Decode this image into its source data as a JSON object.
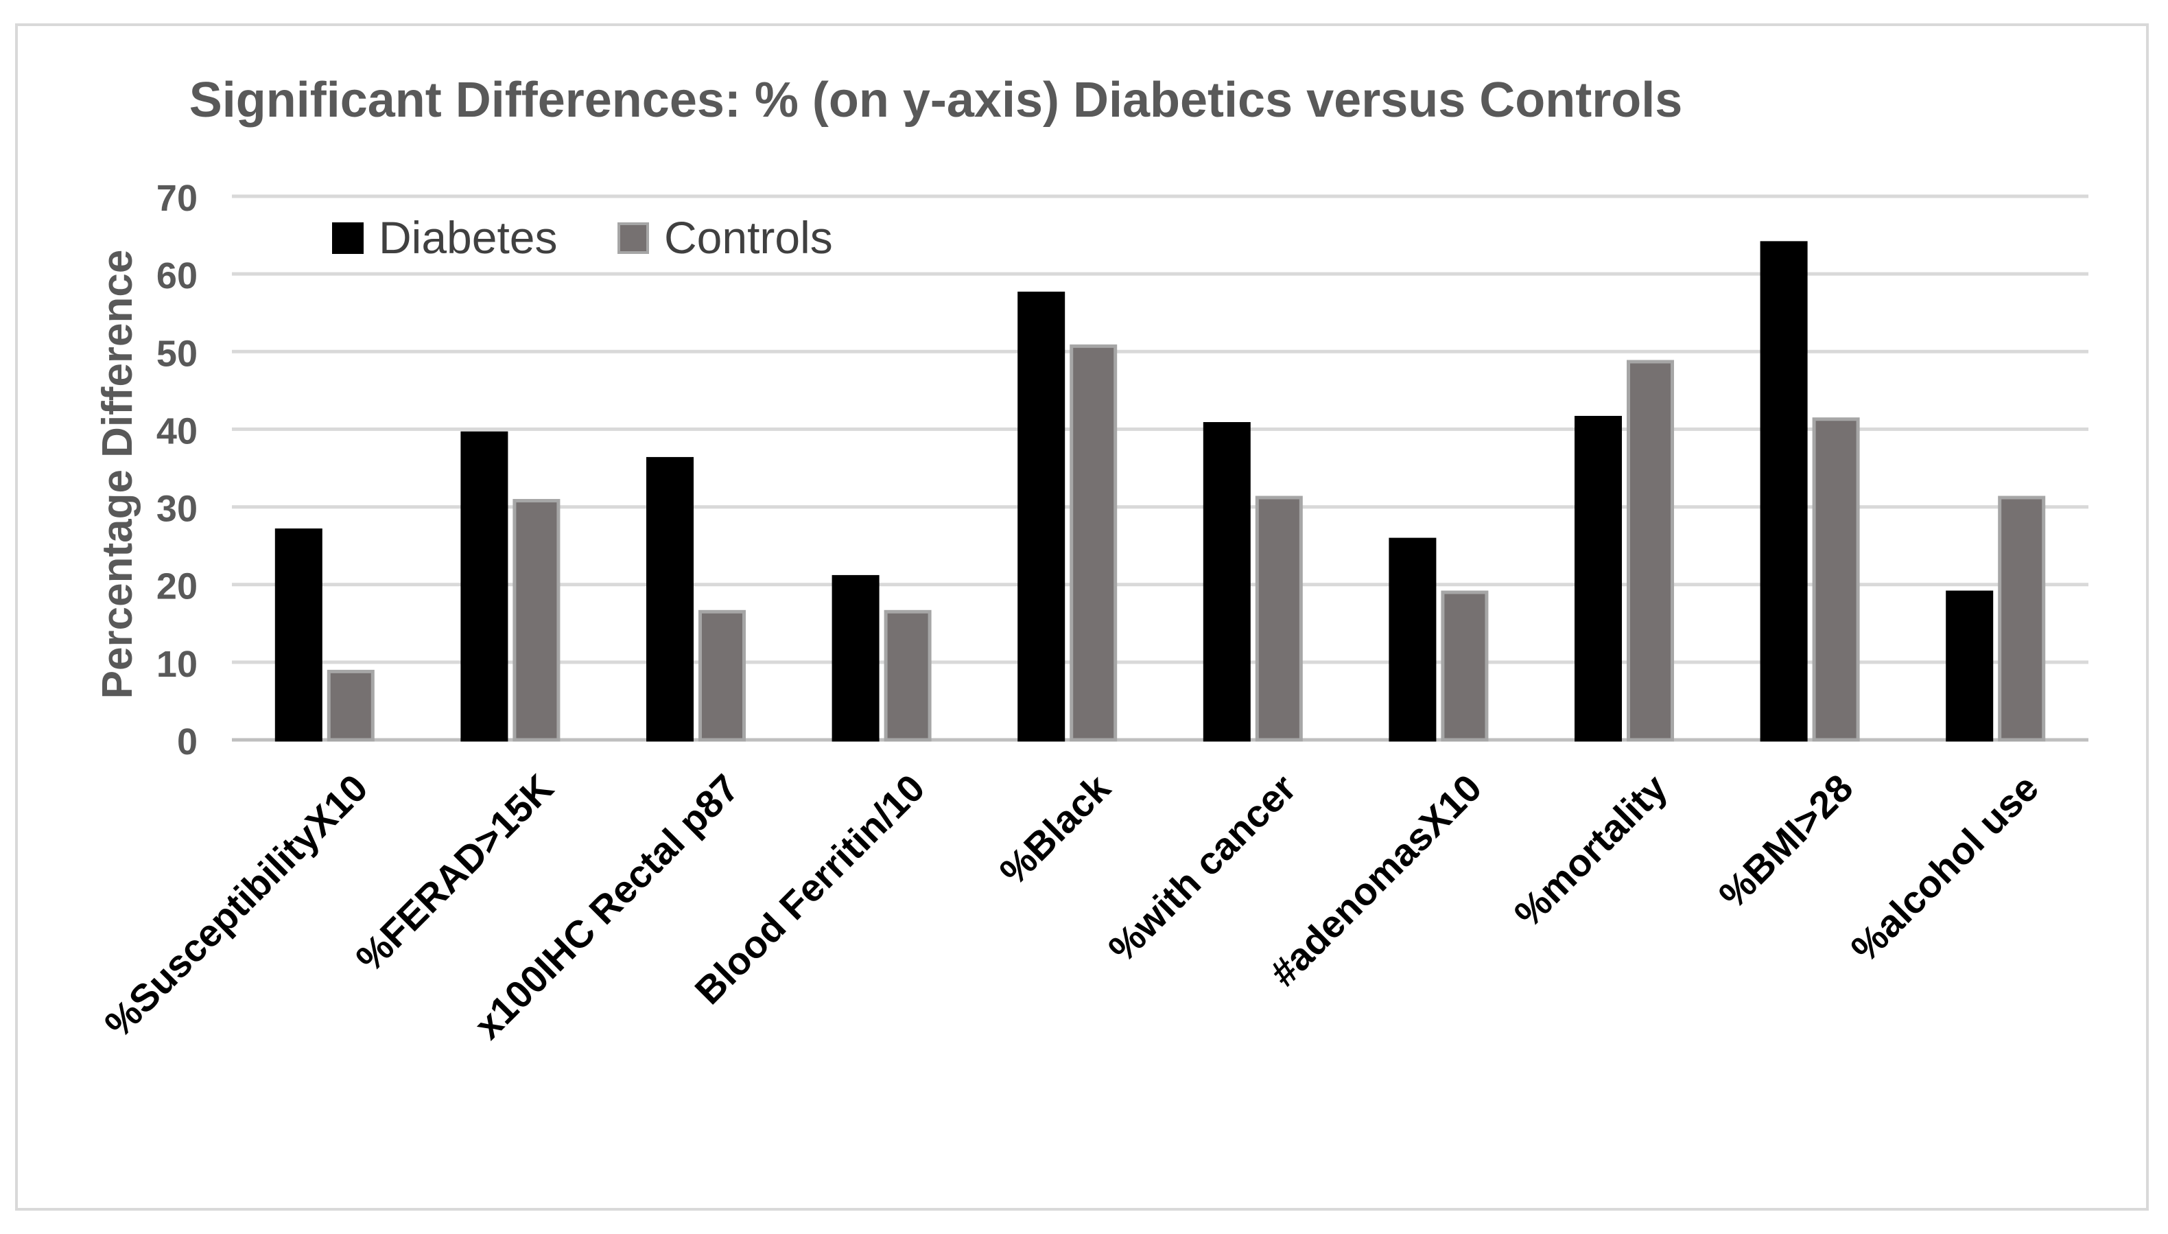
{
  "chart_data": {
    "type": "bar",
    "title": "Significant Differences: % (on y-axis) Diabetics versus Controls",
    "xlabel": "",
    "ylabel": "Percentage Difference",
    "ylim": [
      0,
      70
    ],
    "yticks": [
      0,
      10,
      20,
      30,
      40,
      50,
      60,
      70
    ],
    "grid": true,
    "legend_position": "top-left",
    "categories": [
      "%SusceptibilityX10",
      "%FERAD>15K",
      "x100IHC Rectal p87",
      "Blood Ferritin/10",
      "%Black",
      "%with cancer",
      "#adenomasX10",
      "%mortality",
      "%BMI>28",
      "%alcohol use"
    ],
    "series": [
      {
        "name": "Diabetes",
        "color": "#000000",
        "values": [
          27,
          39.5,
          36.2,
          21,
          57.5,
          40.7,
          25.8,
          41.5,
          64,
          19
        ]
      },
      {
        "name": "Controls",
        "color": "#767171",
        "values": [
          8.8,
          30.8,
          16.5,
          16.5,
          50.7,
          31.2,
          19,
          48.7,
          41.3,
          31.2
        ]
      }
    ]
  }
}
